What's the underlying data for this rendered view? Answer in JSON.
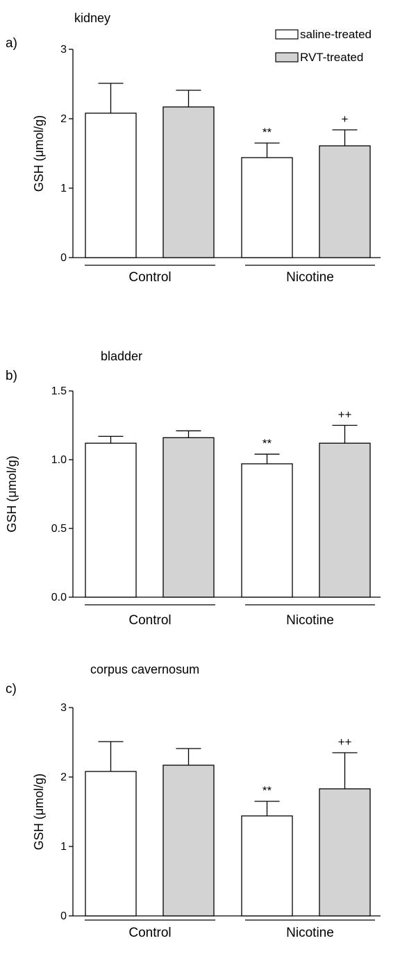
{
  "legend": {
    "position": "top-right",
    "entries": [
      {
        "label": "saline-treated",
        "color": "#ffffff"
      },
      {
        "label": "RVT-treated",
        "color": "#d3d3d3"
      }
    ]
  },
  "colors": {
    "saline": "#ffffff",
    "rvt": "#d3d3d3",
    "stroke": "#000000"
  },
  "chart_data": [
    {
      "type": "bar",
      "panel_label": "a)",
      "title": "kidney",
      "ylabel": "GSH (μmol/g)",
      "ylim": [
        0,
        3
      ],
      "yticks": [
        "0",
        "1",
        "2",
        "3"
      ],
      "groups": [
        "Control",
        "Nicotine"
      ],
      "bars": [
        {
          "group": "Control",
          "series": "saline-treated",
          "value": 2.08,
          "error": 0.43,
          "annotation": ""
        },
        {
          "group": "Control",
          "series": "RVT-treated",
          "value": 2.17,
          "error": 0.24,
          "annotation": ""
        },
        {
          "group": "Nicotine",
          "series": "saline-treated",
          "value": 1.44,
          "error": 0.21,
          "annotation": "**"
        },
        {
          "group": "Nicotine",
          "series": "RVT-treated",
          "value": 1.61,
          "error": 0.23,
          "annotation": "+"
        }
      ]
    },
    {
      "type": "bar",
      "panel_label": "b)",
      "title": "bladder",
      "ylabel": "GSH (μmol/g)",
      "ylim": [
        0,
        1.5
      ],
      "yticks": [
        "0.0",
        "0.5",
        "1.0",
        "1.5"
      ],
      "groups": [
        "Control",
        "Nicotine"
      ],
      "bars": [
        {
          "group": "Control",
          "series": "saline-treated",
          "value": 1.12,
          "error": 0.05,
          "annotation": ""
        },
        {
          "group": "Control",
          "series": "RVT-treated",
          "value": 1.16,
          "error": 0.05,
          "annotation": ""
        },
        {
          "group": "Nicotine",
          "series": "saline-treated",
          "value": 0.97,
          "error": 0.07,
          "annotation": "**"
        },
        {
          "group": "Nicotine",
          "series": "RVT-treated",
          "value": 1.12,
          "error": 0.13,
          "annotation": "++"
        }
      ]
    },
    {
      "type": "bar",
      "panel_label": "c)",
      "title": "corpus cavernosum",
      "ylabel": "GSH (μmol/g)",
      "ylim": [
        0,
        3
      ],
      "yticks": [
        "0",
        "1",
        "2",
        "3"
      ],
      "groups": [
        "Control",
        "Nicotine"
      ],
      "bars": [
        {
          "group": "Control",
          "series": "saline-treated",
          "value": 2.08,
          "error": 0.43,
          "annotation": ""
        },
        {
          "group": "Control",
          "series": "RVT-treated",
          "value": 2.17,
          "error": 0.24,
          "annotation": ""
        },
        {
          "group": "Nicotine",
          "series": "saline-treated",
          "value": 1.44,
          "error": 0.21,
          "annotation": "**"
        },
        {
          "group": "Nicotine",
          "series": "RVT-treated",
          "value": 1.83,
          "error": 0.52,
          "annotation": "++"
        }
      ]
    }
  ]
}
